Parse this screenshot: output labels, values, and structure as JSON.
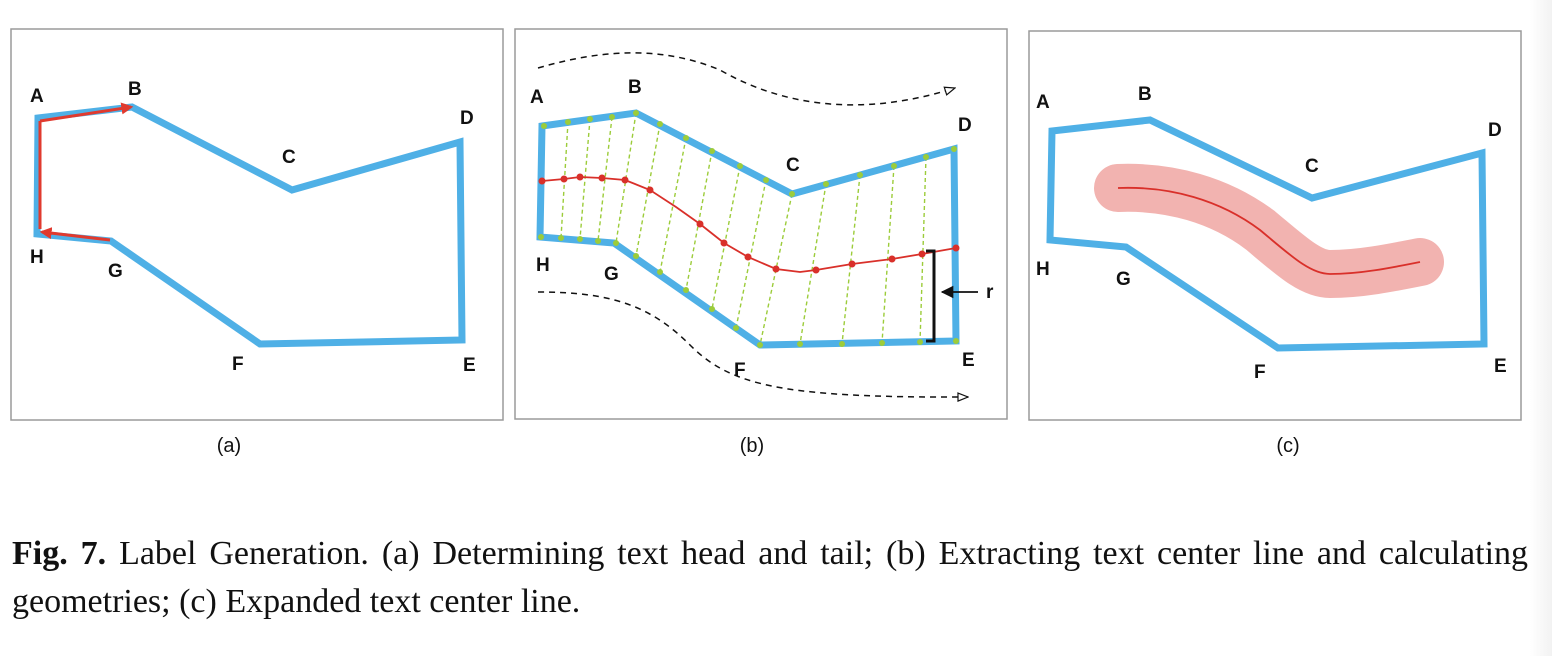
{
  "colors": {
    "polygon": "#4fb0e6",
    "arrow": "#e03a2e",
    "center_line": "#d9302a",
    "sample_points": "#9ccc3a",
    "expanded_region": "#f2b3b0",
    "frame": "#9a9a9a"
  },
  "panels": [
    {
      "id": "a",
      "sublabel": "(a)",
      "vertices": {
        "A": "A",
        "B": "B",
        "C": "C",
        "D": "D",
        "E": "E",
        "F": "F",
        "G": "G",
        "H": "H"
      }
    },
    {
      "id": "b",
      "sublabel": "(b)",
      "vertices": {
        "A": "A",
        "B": "B",
        "C": "C",
        "D": "D",
        "E": "E",
        "F": "F",
        "G": "G",
        "H": "H"
      },
      "radius_label": "r"
    },
    {
      "id": "c",
      "sublabel": "(c)",
      "vertices": {
        "A": "A",
        "B": "B",
        "C": "C",
        "D": "D",
        "E": "E",
        "F": "F",
        "G": "G",
        "H": "H"
      }
    }
  ],
  "caption": {
    "fig_label": "Fig. 7.",
    "text": "Label Generation. (a) Determining text head and tail; (b) Extracting text center line and calculating geometries; (c) Expanded text center line."
  }
}
